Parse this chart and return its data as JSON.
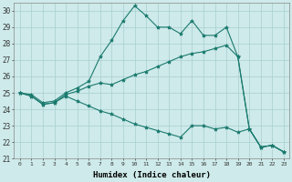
{
  "xlabel": "Humidex (Indice chaleur)",
  "bg_color": "#ceeaea",
  "grid_color": "#a8cece",
  "line_color": "#1a7a6e",
  "xlim": [
    -0.5,
    23.5
  ],
  "ylim": [
    21,
    30.5
  ],
  "yticks": [
    21,
    22,
    23,
    24,
    25,
    26,
    27,
    28,
    29,
    30
  ],
  "xticks": [
    0,
    1,
    2,
    3,
    4,
    5,
    6,
    7,
    8,
    9,
    10,
    11,
    12,
    13,
    14,
    15,
    16,
    17,
    18,
    19,
    20,
    21,
    22,
    23
  ],
  "series": [
    {
      "x": [
        0,
        1,
        2,
        3,
        4,
        5,
        6,
        7,
        8,
        9,
        10,
        11,
        12,
        13,
        14,
        15,
        16,
        17,
        18,
        19,
        20,
        21,
        22,
        23
      ],
      "y": [
        25.0,
        24.9,
        24.4,
        24.5,
        25.0,
        25.3,
        25.7,
        27.2,
        28.2,
        29.4,
        30.3,
        29.7,
        29.0,
        29.0,
        28.6,
        29.4,
        28.5,
        28.5,
        29.0,
        27.2,
        22.8,
        21.7,
        21.8,
        21.4
      ]
    },
    {
      "x": [
        0,
        1,
        2,
        3,
        4,
        5,
        6,
        7,
        8,
        9,
        10,
        11,
        12,
        13,
        14,
        15,
        16,
        17,
        18,
        19,
        20,
        21,
        22,
        23
      ],
      "y": [
        25.0,
        24.8,
        24.3,
        24.4,
        24.9,
        25.1,
        25.4,
        25.6,
        25.5,
        25.8,
        26.1,
        26.3,
        26.6,
        26.9,
        27.2,
        27.4,
        27.5,
        27.7,
        27.9,
        27.2,
        22.8,
        21.7,
        21.8,
        21.4
      ]
    },
    {
      "x": [
        0,
        1,
        2,
        3,
        4,
        5,
        6,
        7,
        8,
        9,
        10,
        11,
        12,
        13,
        14,
        15,
        16,
        17,
        18,
        19,
        20,
        21,
        22,
        23
      ],
      "y": [
        25.0,
        24.8,
        24.3,
        24.4,
        24.8,
        24.5,
        24.2,
        23.9,
        23.7,
        23.4,
        23.1,
        22.9,
        22.7,
        22.5,
        22.3,
        23.0,
        23.0,
        22.8,
        22.9,
        22.6,
        22.8,
        21.7,
        21.8,
        21.4
      ]
    }
  ]
}
